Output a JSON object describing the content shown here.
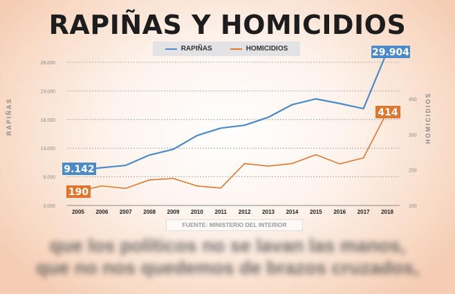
{
  "title": "RAPIÑAS Y HOMICIDIOS",
  "legend": [
    {
      "label": "RAPIÑAS",
      "color": "#4a8ac6"
    },
    {
      "label": "HOMICIDIOS",
      "color": "#e0762b"
    }
  ],
  "axes": {
    "left_title": "RAPIÑAS",
    "right_title": "HOMICIDIOS",
    "left_ticks": [
      "28.000",
      "23.000",
      "18.000",
      "13.000",
      "8.000",
      "3.000"
    ],
    "right_ticks": [
      "450",
      "350",
      "250",
      "150"
    ]
  },
  "source": "FUENTE: MINISTERIO DEL INTERIOR",
  "labels": {
    "rapinas_start": "9.142",
    "rapinas_end": "29.904",
    "homicidios_start": "190",
    "homicidios_end": "414"
  },
  "blurred_text": [
    "que los políticos no se lavan las manos,",
    "que no nos quedemos de brazos cruzados,"
  ],
  "chart_data": {
    "type": "line",
    "title": "RAPIÑAS Y HOMICIDIOS",
    "categories": [
      "2005",
      "2006",
      "2007",
      "2008",
      "2009",
      "2010",
      "2011",
      "2012",
      "2013",
      "2014",
      "2015",
      "2016",
      "2017",
      "2018"
    ],
    "series": [
      {
        "name": "RAPIÑAS",
        "axis": "left",
        "color": "#4a8ac6",
        "values": [
          9142,
          9600,
          10000,
          11800,
          12800,
          15200,
          16500,
          17000,
          18400,
          20600,
          21600,
          20800,
          19900,
          29904
        ]
      },
      {
        "name": "HOMICIDIOS",
        "axis": "right",
        "color": "#e0762b",
        "values": [
          190,
          205,
          198,
          222,
          226,
          205,
          199,
          268,
          261,
          268,
          293,
          267,
          284,
          414
        ]
      }
    ],
    "ylabel_left": "RAPIÑAS",
    "ylabel_right": "HOMICIDIOS",
    "ylim_left": [
      3000,
      28000
    ],
    "ylim_right": [
      150,
      450
    ],
    "grid": true,
    "legend_position": "top",
    "annotations": [
      "9.142",
      "29.904",
      "190",
      "414"
    ],
    "source": "FUENTE: MINISTERIO DEL INTERIOR"
  }
}
